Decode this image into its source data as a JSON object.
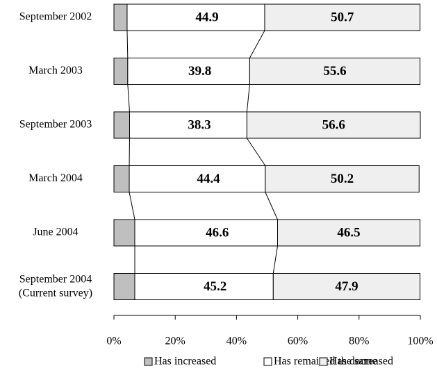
{
  "chart_data": {
    "type": "stacked_barh",
    "categories": [
      "September 2002",
      "March 2003",
      "September 2003",
      "March 2004",
      "June 2004",
      "September 2004\n(Current survey)"
    ],
    "series": [
      {
        "name": "Has increased",
        "color": "#bfbfbf",
        "values": [
          4.3,
          4.5,
          5.1,
          5.0,
          6.8,
          6.8
        ],
        "value_labels": [
          "4.3",
          "4.5",
          "5.1",
          "5.0",
          "6.8",
          "6.8"
        ]
      },
      {
        "name": "Has remained the same",
        "color": "#ffffff",
        "values": [
          44.9,
          39.8,
          38.3,
          44.4,
          46.6,
          45.2
        ]
      },
      {
        "name": "Has decreased",
        "color": "#efefef",
        "values": [
          50.7,
          55.6,
          56.6,
          50.2,
          46.5,
          47.9
        ]
      }
    ],
    "xlim": [
      0,
      100
    ],
    "xticks": [
      {
        "value": 0,
        "label": "0%"
      },
      {
        "value": 20,
        "label": "20%"
      },
      {
        "value": 40,
        "label": "40%"
      },
      {
        "value": 60,
        "label": "60%"
      },
      {
        "value": 80,
        "label": "80%"
      },
      {
        "value": 100,
        "label": "100%"
      }
    ]
  }
}
